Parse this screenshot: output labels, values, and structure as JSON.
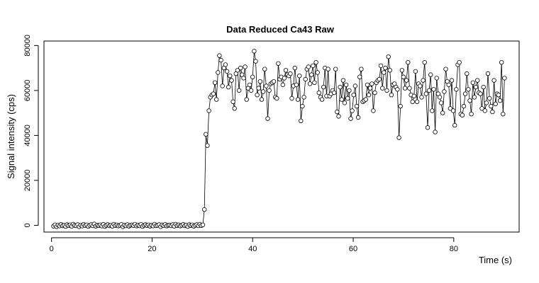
{
  "chart_data": {
    "type": "line",
    "title": "Data Reduced Ca43 Raw",
    "xlabel": "Time (s)",
    "ylabel": "Signal intensity (cps)",
    "xlim": [
      -1.5,
      93
    ],
    "ylim": [
      -3000,
      82000
    ],
    "x_ticks": [
      0,
      20,
      40,
      60,
      80
    ],
    "y_ticks": [
      0,
      20000,
      40000,
      60000,
      80000
    ],
    "x_tick_labels": [
      "0",
      "20",
      "40",
      "60",
      "80"
    ],
    "y_tick_labels": [
      "0",
      "20000",
      "40000",
      "60000",
      "80000"
    ],
    "grid": false,
    "legend": "none",
    "marker": "open-circle",
    "series": [
      {
        "x": [
          0.4,
          0.7,
          1.0,
          1.3,
          1.6,
          1.9,
          2.2,
          2.5,
          2.8,
          3.1,
          3.4,
          3.7,
          4.0,
          4.3,
          4.6,
          4.9,
          5.2,
          5.5,
          5.8,
          6.1,
          6.4,
          6.7,
          7.0,
          7.3,
          7.6,
          7.9,
          8.2,
          8.5,
          8.8,
          9.1,
          9.4,
          9.7,
          10.0,
          10.3,
          10.6,
          10.9,
          11.2,
          11.5,
          11.8,
          12.1,
          12.4,
          12.7,
          13.0,
          13.3,
          13.6,
          13.9,
          14.2,
          14.5,
          14.8,
          15.1,
          15.4,
          15.7,
          16.0,
          16.3,
          16.6,
          16.9,
          17.2,
          17.5,
          17.8,
          18.1,
          18.4,
          18.7,
          19.0,
          19.3,
          19.6,
          19.9,
          20.2,
          20.5,
          20.8,
          21.1,
          21.4,
          21.7,
          22.0,
          22.3,
          22.6,
          22.9,
          23.2,
          23.5,
          23.8,
          24.1,
          24.4,
          24.7,
          25.0,
          25.3,
          25.6,
          25.9,
          26.2,
          26.5,
          26.8,
          27.1,
          27.4,
          27.7,
          28.0,
          28.3,
          28.6,
          28.9,
          29.2,
          29.5,
          29.8,
          30.1,
          30.4,
          30.7,
          31.0,
          31.3,
          31.6,
          31.9,
          32.2,
          32.5,
          32.8,
          33.1,
          33.4,
          33.7,
          34.0,
          34.3,
          34.6,
          34.9,
          35.2,
          35.5,
          35.8,
          36.1,
          36.4,
          36.7,
          37.0,
          37.3,
          37.6,
          37.9,
          38.2,
          38.5,
          38.8,
          39.1,
          39.4,
          39.7,
          40.0,
          40.3,
          40.6,
          40.9,
          41.2,
          41.5,
          41.8,
          42.1,
          42.4,
          42.7,
          43.0,
          43.3,
          43.6,
          43.9,
          44.2,
          44.5,
          44.8,
          45.1,
          45.4,
          45.7,
          46.0,
          46.3,
          46.6,
          46.9,
          47.2,
          47.5,
          47.8,
          48.1,
          48.4,
          48.7,
          49.0,
          49.3,
          49.6,
          49.9,
          50.2,
          50.5,
          50.8,
          51.1,
          51.4,
          51.7,
          52.0,
          52.3,
          52.6,
          52.9,
          53.2,
          53.5,
          53.8,
          54.1,
          54.4,
          54.7,
          55.0,
          55.3,
          55.6,
          55.9,
          56.2,
          56.5,
          56.8,
          57.1,
          57.4,
          57.7,
          58.0,
          58.3,
          58.6,
          58.9,
          59.2,
          59.5,
          59.8,
          60.1,
          60.4,
          60.7,
          61.0,
          61.3,
          61.6,
          61.9,
          62.2,
          62.5,
          62.8,
          63.1,
          63.4,
          63.7,
          64.0,
          64.3,
          64.6,
          64.9,
          65.2,
          65.5,
          65.8,
          66.1,
          66.4,
          66.7,
          67.0,
          67.3,
          67.6,
          67.9,
          68.2,
          68.5,
          68.8,
          69.1,
          69.4,
          69.7,
          70.0,
          70.3,
          70.6,
          70.9,
          71.2,
          71.5,
          71.8,
          72.1,
          72.4,
          72.7,
          73.0,
          73.3,
          73.6,
          73.9,
          74.2,
          74.5,
          74.8,
          75.1,
          75.4,
          75.7,
          76.0,
          76.3,
          76.6,
          76.9,
          77.2,
          77.5,
          77.8,
          78.1,
          78.4,
          78.7,
          79.0,
          79.3,
          79.6,
          79.9,
          80.2,
          80.5,
          80.8,
          81.1,
          81.4,
          81.7,
          82.0,
          82.3,
          82.6,
          82.9,
          83.2,
          83.5,
          83.8,
          84.1,
          84.4,
          84.7,
          85.0,
          85.3,
          85.6,
          85.9,
          86.2,
          86.5,
          86.8,
          87.1,
          87.4,
          87.7,
          88.0,
          88.3,
          88.6,
          88.9,
          89.2,
          89.5,
          89.8,
          90.1
        ],
        "y": [
          -400,
          200,
          -600,
          100,
          -300,
          400,
          -200,
          0,
          -500,
          300,
          -100,
          200,
          -400,
          500,
          0,
          -200,
          300,
          -600,
          100,
          -300,
          400,
          -100,
          200,
          -500,
          0,
          300,
          -200,
          600,
          -400,
          100,
          -100,
          200,
          -300,
          400,
          -500,
          0,
          300,
          -200,
          100,
          -400,
          500,
          -100,
          200,
          -300,
          0,
          400,
          -600,
          100,
          -200,
          300,
          -400,
          0,
          200,
          -100,
          500,
          -300,
          100,
          -200,
          400,
          -500,
          0,
          300,
          -100,
          200,
          -400,
          100,
          -300,
          500,
          -200,
          0,
          300,
          -600,
          200,
          -100,
          400,
          -300,
          0,
          100,
          -200,
          300,
          -400,
          500,
          -100,
          200,
          -300,
          0,
          400,
          -200,
          100,
          -500,
          300,
          -100,
          200,
          -400,
          0,
          300,
          -200,
          500,
          -100,
          200,
          7000,
          40500,
          35500,
          51000,
          57000,
          58000,
          58500,
          63500,
          56000,
          68000,
          75500,
          73500,
          62000,
          70000,
          71500,
          68500,
          61500,
          66500,
          64500,
          55000,
          52000,
          67500,
          69000,
          60000,
          70000,
          67000,
          65500,
          70500,
          56000,
          61000,
          62500,
          60000,
          66000,
          77500,
          73000,
          58000,
          61000,
          64000,
          56000,
          59500,
          69500,
          62000,
          47500,
          60000,
          63000,
          63500,
          64000,
          57000,
          56500,
          72000,
          65000,
          66000,
          62500,
          65500,
          69000,
          67000,
          66500,
          67500,
          56500,
          62000,
          70000,
          62500,
          56000,
          66500,
          46500,
          53000,
          57000,
          65000,
          69500,
          70500,
          63000,
          67000,
          71000,
          63500,
          72500,
          68000,
          59000,
          57000,
          56000,
          61500,
          70000,
          57500,
          69500,
          57500,
          58500,
          60000,
          59000,
          69500,
          50500,
          48500,
          61500,
          56000,
          64500,
          54500,
          62500,
          56500,
          60000,
          47500,
          51000,
          58000,
          62000,
          53000,
          48000,
          66000,
          69500,
          55000,
          55500,
          56000,
          62500,
          58000,
          61000,
          63000,
          51000,
          59000,
          63500,
          64500,
          65000,
          71000,
          61000,
          68000,
          70000,
          60000,
          75000,
          69000,
          58000,
          62500,
          63000,
          61500,
          60500,
          39000,
          53000,
          69000,
          66000,
          61000,
          64500,
          72500,
          61000,
          58000,
          55000,
          57500,
          68500,
          55000,
          63000,
          62000,
          57000,
          64500,
          72500,
          58500,
          43500,
          60000,
          67000,
          51000,
          60500,
          41500,
          65500,
          58500,
          57000,
          54500,
          50000,
          59500,
          69500,
          64000,
          62500,
          52000,
          64500,
          51000,
          44500,
          60500,
          71500,
          72500,
          49500,
          49000,
          53000,
          58500,
          67500,
          60500,
          55500,
          49500,
          63500,
          57000,
          61500,
          64500,
          59000,
          58500,
          52000,
          61500,
          51000,
          54500,
          67500,
          56500,
          53000,
          50500,
          64500,
          54000,
          58500,
          58000,
          55500,
          72500,
          49500,
          65500
        ]
      }
    ]
  }
}
